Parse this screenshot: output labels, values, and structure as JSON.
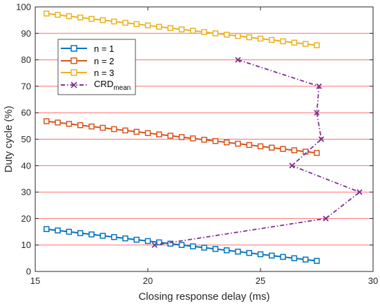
{
  "chart_data": {
    "type": "line",
    "xlabel": "Closing response delay (ms)",
    "ylabel": "Duty cycle (%)",
    "xlim": [
      15,
      30
    ],
    "ylim": [
      0,
      100
    ],
    "xticks": [
      15,
      20,
      25,
      30
    ],
    "yticks": [
      0,
      10,
      20,
      30,
      40,
      50,
      60,
      70,
      80,
      90,
      100
    ],
    "grid": "horizontal",
    "grid_color": "#ff6b6b",
    "legend_position": "top-left",
    "series": [
      {
        "name": "n = 1",
        "color": "#0072BD",
        "marker": "square",
        "line_style": "solid",
        "x": [
          15.5,
          16.0,
          16.5,
          17.0,
          17.5,
          18.0,
          18.5,
          19.0,
          19.5,
          20.0,
          20.5,
          21.0,
          21.5,
          22.0,
          22.5,
          23.0,
          23.5,
          24.0,
          24.5,
          25.0,
          25.5,
          26.0,
          26.5,
          27.0,
          27.5
        ],
        "y": [
          16.0,
          15.5,
          15.0,
          14.5,
          14.0,
          13.5,
          13.0,
          12.5,
          12.0,
          11.5,
          11.0,
          10.5,
          10.0,
          9.5,
          9.0,
          8.5,
          8.0,
          7.5,
          7.0,
          6.5,
          6.0,
          5.5,
          5.0,
          4.5,
          4.0
        ]
      },
      {
        "name": "n = 2",
        "color": "#D95319",
        "marker": "square",
        "line_style": "solid",
        "x": [
          15.5,
          16.0,
          16.5,
          17.0,
          17.5,
          18.0,
          18.5,
          19.0,
          19.5,
          20.0,
          20.5,
          21.0,
          21.5,
          22.0,
          22.5,
          23.0,
          23.5,
          24.0,
          24.5,
          25.0,
          25.5,
          26.0,
          26.5,
          27.0,
          27.5
        ],
        "y": [
          56.8,
          56.3,
          55.8,
          55.3,
          54.8,
          54.3,
          53.8,
          53.3,
          52.8,
          52.3,
          51.8,
          51.3,
          50.8,
          50.3,
          49.8,
          49.3,
          48.8,
          48.3,
          47.8,
          47.3,
          46.8,
          46.3,
          45.8,
          45.3,
          44.8
        ]
      },
      {
        "name": "n = 3",
        "color": "#EDB120",
        "marker": "square",
        "line_style": "solid",
        "x": [
          15.5,
          16.0,
          16.5,
          17.0,
          17.5,
          18.0,
          18.5,
          19.0,
          19.5,
          20.0,
          20.5,
          21.0,
          21.5,
          22.0,
          22.5,
          23.0,
          23.5,
          24.0,
          24.5,
          25.0,
          25.5,
          26.0,
          26.5,
          27.0,
          27.5
        ],
        "y": [
          97.5,
          97.0,
          96.5,
          96.0,
          95.5,
          95.0,
          94.5,
          94.0,
          93.5,
          93.0,
          92.5,
          92.0,
          91.5,
          91.0,
          90.5,
          90.0,
          89.5,
          89.0,
          88.5,
          88.0,
          87.5,
          87.0,
          86.5,
          86.0,
          85.5
        ]
      },
      {
        "name": "CRD",
        "name_subscript": "mean",
        "color": "#7E2F8E",
        "marker": "x",
        "line_style": "dashdot",
        "x": [
          24.0,
          27.6,
          27.5,
          27.7,
          26.4,
          29.4,
          27.9,
          20.3
        ],
        "y": [
          80,
          70,
          60,
          50,
          40,
          30,
          20,
          10
        ]
      }
    ]
  }
}
